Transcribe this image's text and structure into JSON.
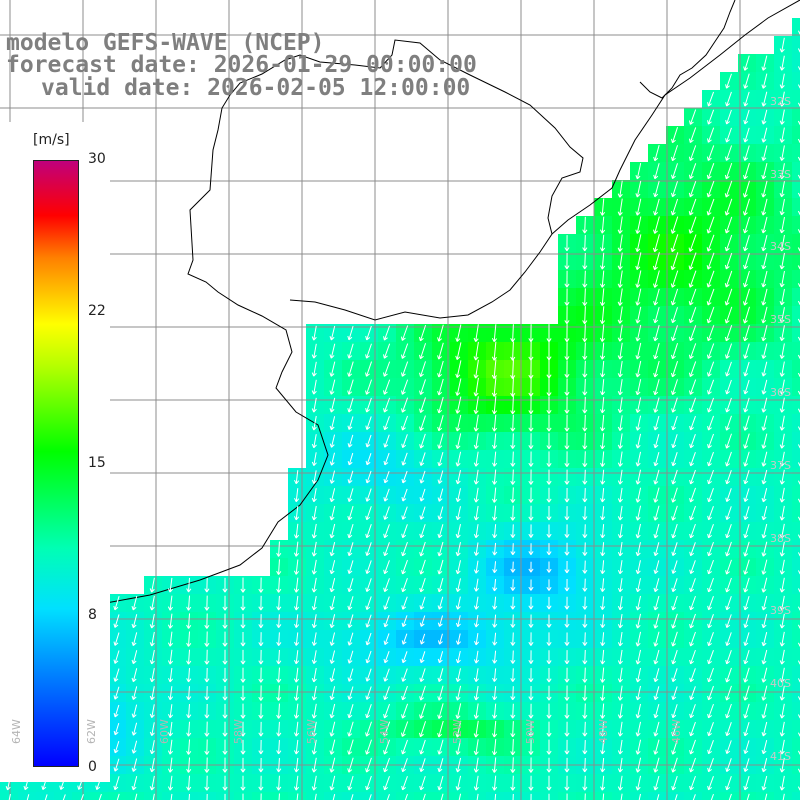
{
  "title": {
    "line1": "modelo GEFS-WAVE (NCEP)",
    "line2": "forecast date: 2026-01-29 00:00:00",
    "line3": "valid date: 2026-02-05 12:00:00"
  },
  "colorbar": {
    "unit": "[m/s]",
    "ticks": [
      "30",
      "22",
      "15",
      "8",
      "0"
    ],
    "min": 0,
    "max": 30,
    "colors": [
      "#0000ff",
      "#0080ff",
      "#00e0ff",
      "#00ffb4",
      "#00ff00",
      "#b4ff00",
      "#ffff00",
      "#ff8000",
      "#ff0000",
      "#c0007c"
    ]
  },
  "map": {
    "field": "wind speed",
    "land_color": "#ffffff",
    "coastline_color": "#000000",
    "grid_color": "#8c8c8c",
    "vector_color": "#ffffff",
    "prevailing_wind_direction": "from north-northeast",
    "longitude_labels": [
      "64W",
      "62W",
      "60W",
      "58W",
      "56W",
      "54W",
      "52W",
      "50W",
      "48W",
      "46W"
    ],
    "latitude_labels": [
      "32S",
      "33S",
      "34S",
      "35S",
      "36S",
      "37S",
      "38S",
      "39S",
      "40S",
      "41S"
    ]
  }
}
